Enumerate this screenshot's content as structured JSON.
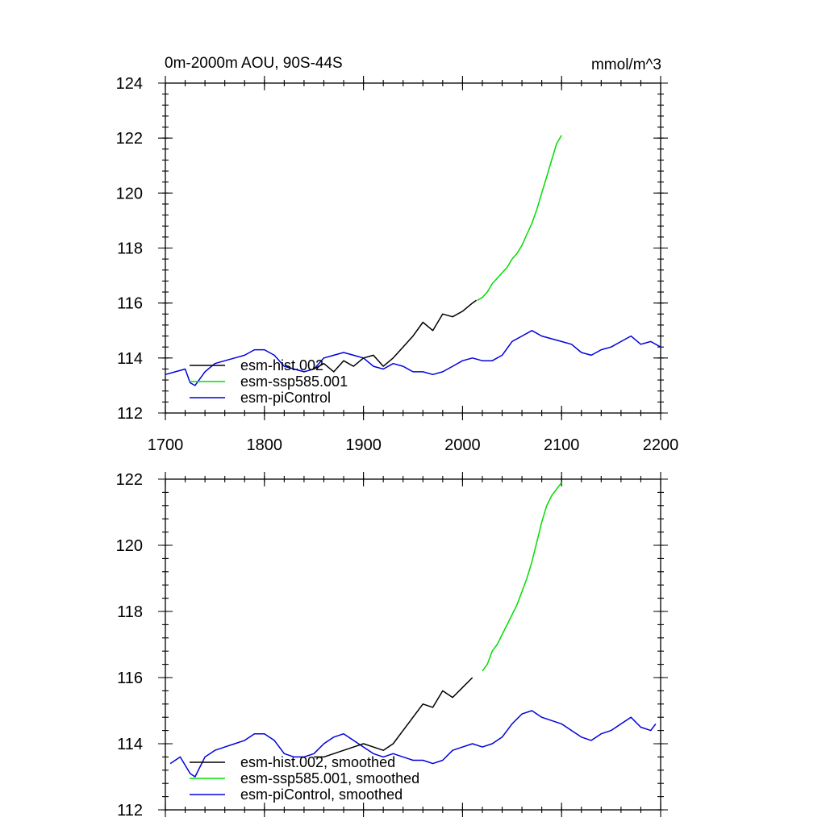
{
  "chart_data": [
    {
      "type": "line",
      "title": "0m-2000m AOU, 90S-44S",
      "units": "mmol/m^3",
      "xlim": [
        1700,
        2200
      ],
      "ylim": [
        112,
        124
      ],
      "xticks": [
        1700,
        1800,
        1900,
        2000,
        2100,
        2200
      ],
      "yticks": [
        112,
        114,
        116,
        118,
        120,
        122,
        124
      ],
      "legend_position": "bottom-left",
      "series": [
        {
          "name": "esm-hist.002",
          "color": "#000000",
          "x": [
            1850,
            1860,
            1870,
            1880,
            1890,
            1900,
            1910,
            1920,
            1930,
            1940,
            1950,
            1960,
            1970,
            1980,
            1990,
            2000,
            2010,
            2014
          ],
          "y": [
            113.6,
            113.8,
            113.5,
            113.9,
            113.7,
            114.0,
            114.1,
            113.7,
            114.0,
            114.4,
            114.8,
            115.3,
            115.0,
            115.6,
            115.5,
            115.7,
            116.0,
            116.1
          ]
        },
        {
          "name": "esm-ssp585.001",
          "color": "#00dd00",
          "x": [
            2015,
            2020,
            2025,
            2030,
            2035,
            2040,
            2045,
            2050,
            2055,
            2060,
            2065,
            2070,
            2075,
            2080,
            2085,
            2090,
            2095,
            2100
          ],
          "y": [
            116.1,
            116.2,
            116.4,
            116.7,
            116.9,
            117.1,
            117.3,
            117.6,
            117.8,
            118.1,
            118.5,
            118.9,
            119.4,
            120.0,
            120.6,
            121.2,
            121.8,
            122.1
          ]
        },
        {
          "name": "esm-piControl",
          "color": "#0000dd",
          "x": [
            1700,
            1710,
            1720,
            1725,
            1730,
            1740,
            1750,
            1760,
            1770,
            1780,
            1790,
            1800,
            1810,
            1820,
            1830,
            1840,
            1850,
            1860,
            1870,
            1880,
            1890,
            1900,
            1910,
            1920,
            1930,
            1940,
            1950,
            1960,
            1970,
            1980,
            1990,
            2000,
            2010,
            2020,
            2030,
            2040,
            2050,
            2060,
            2070,
            2080,
            2090,
            2100,
            2110,
            2120,
            2130,
            2140,
            2150,
            2160,
            2170,
            2180,
            2190,
            2200
          ],
          "y": [
            113.4,
            113.5,
            113.6,
            113.1,
            113.0,
            113.5,
            113.8,
            113.9,
            114.0,
            114.1,
            114.3,
            114.3,
            114.1,
            113.7,
            113.6,
            113.5,
            113.6,
            114.0,
            114.1,
            114.2,
            114.1,
            114.0,
            113.7,
            113.6,
            113.8,
            113.7,
            113.5,
            113.5,
            113.4,
            113.5,
            113.7,
            113.9,
            114.0,
            113.9,
            113.9,
            114.1,
            114.6,
            114.8,
            115.0,
            114.8,
            114.7,
            114.6,
            114.5,
            114.2,
            114.1,
            114.3,
            114.4,
            114.6,
            114.8,
            114.5,
            114.6,
            114.4
          ]
        }
      ]
    },
    {
      "type": "line",
      "title": "",
      "xlim": [
        1700,
        2200
      ],
      "ylim": [
        112,
        122
      ],
      "yticks": [
        112,
        114,
        116,
        118,
        120,
        122
      ],
      "legend_position": "bottom-left",
      "series": [
        {
          "name": "esm-hist.002, smoothed",
          "color": "#000000",
          "x": [
            1850,
            1860,
            1870,
            1880,
            1890,
            1900,
            1910,
            1920,
            1930,
            1940,
            1950,
            1960,
            1970,
            1980,
            1990,
            2000,
            2010
          ],
          "y": [
            113.6,
            113.6,
            113.7,
            113.8,
            113.9,
            114.0,
            113.9,
            113.8,
            114.0,
            114.4,
            114.8,
            115.2,
            115.1,
            115.6,
            115.4,
            115.7,
            116.0
          ]
        },
        {
          "name": "esm-ssp585.001, smoothed",
          "color": "#00dd00",
          "x": [
            2020,
            2025,
            2030,
            2035,
            2040,
            2045,
            2050,
            2055,
            2060,
            2065,
            2070,
            2075,
            2080,
            2085,
            2090,
            2095,
            2100
          ],
          "y": [
            116.2,
            116.4,
            116.8,
            117.0,
            117.3,
            117.6,
            117.9,
            118.2,
            118.6,
            119.0,
            119.5,
            120.1,
            120.7,
            121.2,
            121.5,
            121.7,
            121.9
          ]
        },
        {
          "name": "esm-piControl, smoothed",
          "color": "#0000dd",
          "x": [
            1705,
            1715,
            1725,
            1730,
            1740,
            1750,
            1760,
            1770,
            1780,
            1790,
            1800,
            1810,
            1820,
            1830,
            1840,
            1850,
            1860,
            1870,
            1880,
            1890,
            1900,
            1910,
            1920,
            1930,
            1940,
            1950,
            1960,
            1970,
            1980,
            1990,
            2000,
            2010,
            2020,
            2030,
            2040,
            2050,
            2060,
            2070,
            2080,
            2090,
            2100,
            2110,
            2120,
            2130,
            2140,
            2150,
            2160,
            2170,
            2180,
            2190,
            2195
          ],
          "y": [
            113.4,
            113.6,
            113.1,
            113.0,
            113.6,
            113.8,
            113.9,
            114.0,
            114.1,
            114.3,
            114.3,
            114.1,
            113.7,
            113.6,
            113.6,
            113.7,
            114.0,
            114.2,
            114.3,
            114.1,
            113.9,
            113.7,
            113.6,
            113.7,
            113.6,
            113.5,
            113.5,
            113.4,
            113.5,
            113.8,
            113.9,
            114.0,
            113.9,
            114.0,
            114.2,
            114.6,
            114.9,
            115.0,
            114.8,
            114.7,
            114.6,
            114.4,
            114.2,
            114.1,
            114.3,
            114.4,
            114.6,
            114.8,
            114.5,
            114.4,
            114.6
          ]
        }
      ]
    }
  ]
}
